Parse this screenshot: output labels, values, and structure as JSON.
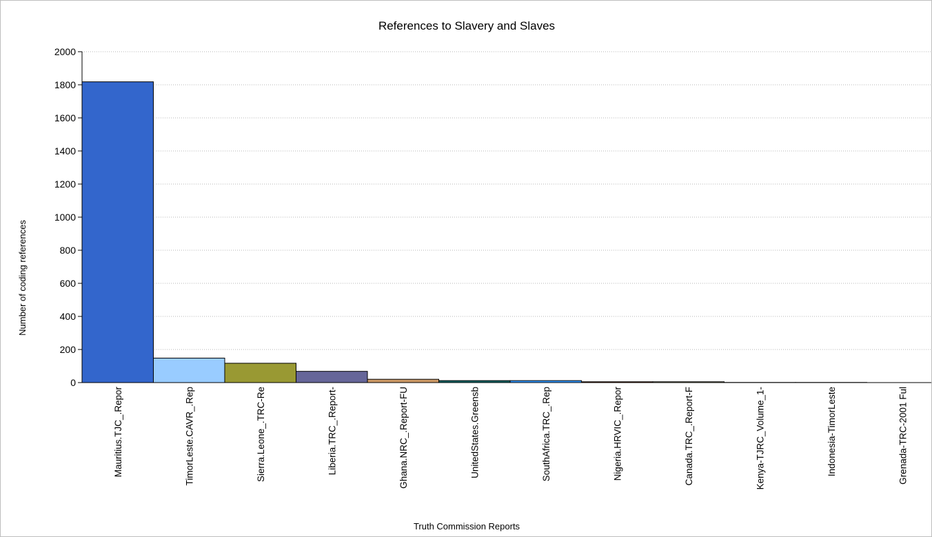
{
  "chart_data": {
    "type": "bar",
    "title": "References to Slavery and Slaves",
    "xlabel": "Truth Commission Reports",
    "ylabel": "Number of coding references",
    "ylim": [
      0,
      2000
    ],
    "yticks": [
      0,
      200,
      400,
      600,
      800,
      1000,
      1200,
      1400,
      1600,
      1800,
      2000
    ],
    "grid": true,
    "categories": [
      "Mauritius.TJC_.Repor",
      "TimorLeste.CAVR_.Rep",
      "Sierra.Leone_.TRC-Re",
      "Liberia.TRC_.Report-",
      "Ghana.NRC_.Report-FU",
      "UnitedStates.Greensb",
      "SouthAfrica.TRC_.Rep",
      "Nigeria.HRVIC_.Repor",
      "Canada.TRC_.Report-F",
      "Kenya-TJRC_Volume_1-",
      "Indonesia-TimorLeste",
      "Grenada-TRC-2001 Ful"
    ],
    "values": [
      1818,
      148,
      117,
      68,
      20,
      12,
      12,
      5,
      5,
      1,
      1,
      0
    ],
    "colors": [
      "#3366cc",
      "#99ccff",
      "#999933",
      "#666699",
      "#cc9966",
      "#006666",
      "#3399ff",
      "#993300",
      "#cccc99",
      "#666666",
      "#ffcc66",
      "#6699cc"
    ]
  }
}
